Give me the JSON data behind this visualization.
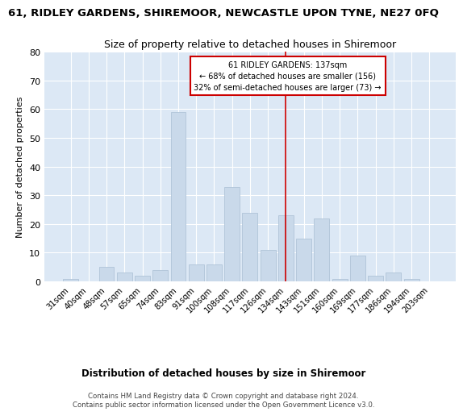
{
  "title": "61, RIDLEY GARDENS, SHIREMOOR, NEWCASTLE UPON TYNE, NE27 0FQ",
  "subtitle": "Size of property relative to detached houses in Shiremoor",
  "xlabel": "Distribution of detached houses by size in Shiremoor",
  "ylabel": "Number of detached properties",
  "footer": "Contains HM Land Registry data © Crown copyright and database right 2024.\nContains public sector information licensed under the Open Government Licence v3.0.",
  "categories": [
    "31sqm",
    "40sqm",
    "48sqm",
    "57sqm",
    "65sqm",
    "74sqm",
    "83sqm",
    "91sqm",
    "100sqm",
    "108sqm",
    "117sqm",
    "126sqm",
    "134sqm",
    "143sqm",
    "151sqm",
    "160sqm",
    "169sqm",
    "177sqm",
    "186sqm",
    "194sqm",
    "203sqm"
  ],
  "values": [
    1,
    0,
    5,
    3,
    2,
    4,
    59,
    6,
    6,
    33,
    24,
    11,
    23,
    15,
    22,
    1,
    9,
    2,
    3,
    1,
    0
  ],
  "bar_color": "#c9d9ea",
  "bar_edge_color": "#b0c4d8",
  "reference_line_x": "134sqm",
  "reference_line_color": "#cc0000",
  "annotation_title": "61 RIDLEY GARDENS: 137sqm",
  "annotation_line1": "← 68% of detached houses are smaller (156)",
  "annotation_line2": "32% of semi-detached houses are larger (73) →",
  "annotation_box_color": "#cc0000",
  "ylim": [
    0,
    80
  ],
  "yticks": [
    0,
    10,
    20,
    30,
    40,
    50,
    60,
    70,
    80
  ],
  "fig_bg_color": "#ffffff",
  "plot_bg_color": "#dce8f5"
}
